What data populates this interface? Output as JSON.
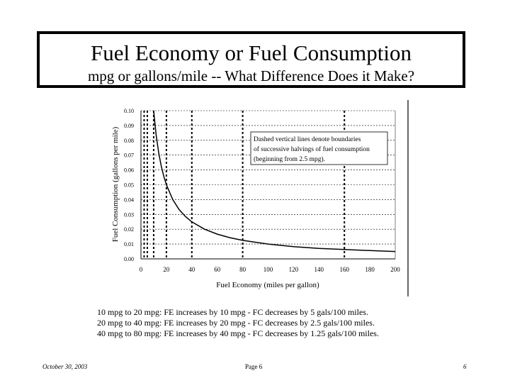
{
  "slide": {
    "title": "Fuel Economy or Fuel Consumption",
    "subtitle": "mpg or gallons/mile -- What Difference Does it Make?"
  },
  "chart_data": {
    "type": "line",
    "xlabel": "Fuel Economy (miles per gallon)",
    "ylabel": "Fuel Consumption (gallons per mile)",
    "xlim": [
      0,
      200
    ],
    "ylim": [
      0,
      0.1
    ],
    "x_ticks": [
      "0",
      "20",
      "40",
      "60",
      "80",
      "100",
      "120",
      "140",
      "160",
      "180",
      "200"
    ],
    "y_ticks": [
      "0.00",
      "0.01",
      "0.02",
      "0.03",
      "0.04",
      "0.05",
      "0.06",
      "0.07",
      "0.08",
      "0.09",
      "0.10"
    ],
    "series": [
      {
        "name": "Fuel Consumption",
        "x": [
          10,
          12,
          14,
          16,
          18,
          20,
          25,
          30,
          35,
          40,
          50,
          60,
          70,
          80,
          100,
          120,
          140,
          160,
          180,
          200
        ],
        "y": [
          0.1,
          0.0833,
          0.0714,
          0.0625,
          0.0556,
          0.05,
          0.04,
          0.0333,
          0.0286,
          0.025,
          0.02,
          0.0167,
          0.0143,
          0.0125,
          0.01,
          0.0083,
          0.0071,
          0.0063,
          0.0056,
          0.005
        ]
      }
    ],
    "dashed_vertical_lines_x": [
      2.5,
      5,
      10,
      20,
      40,
      80,
      160
    ],
    "annotation": [
      "Dashed vertical lines denote boundaries",
      "of successive halvings of fuel consumption",
      "(beginning from 2.5 mpg)."
    ],
    "grid": "horizontal dashed"
  },
  "notes": [
    "10 mpg to 20 mpg: FE increases by 10 mpg - FC decreases by 5 gals/100 miles.",
    "20 mpg to 40 mpg: FE increases by 20 mpg - FC decreases by 2.5 gals/100 miles.",
    "40 mpg to 80 mpg: FE increases by 40 mpg - FC decreases by 1.25 gals/100 miles."
  ],
  "footer": {
    "date": "October 30, 2003",
    "page": "Page 6",
    "number": "6"
  },
  "colors": {
    "ink": "#000000",
    "background": "#ffffff"
  }
}
